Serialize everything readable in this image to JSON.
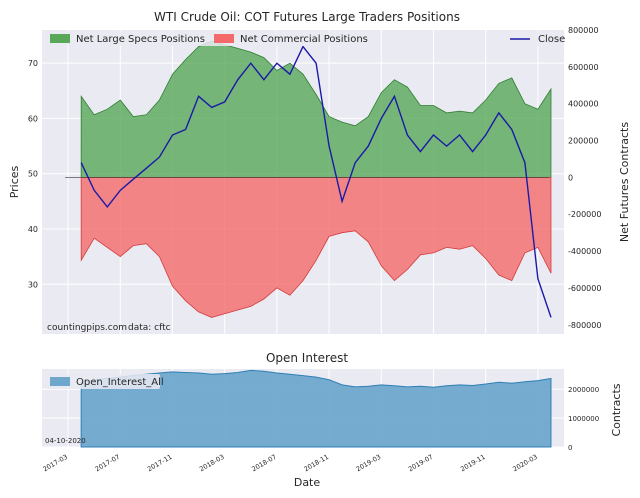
{
  "colors": {
    "specs_fill": "#58a858",
    "specs_edge": "#2e7d32",
    "comm_fill": "#f46a6a",
    "comm_edge": "#d23c3c",
    "close_line": "#1a1aa8",
    "oi_fill": "#6fa8cc",
    "oi_edge": "#2f7fb5",
    "plot_bg": "#eaeaf2",
    "grid": "#ffffff"
  },
  "chart_data": [
    {
      "type": "area",
      "title": "WTI Crude Oil: COT Futures Large Traders Positions",
      "ylabel_left": "Prices",
      "ylabel_right": "Net Futures Contracts",
      "ylim_left": [
        21,
        76
      ],
      "ylim_right": [
        -850000,
        800000
      ],
      "yticks_left": [
        "30",
        "40",
        "50",
        "60",
        "70"
      ],
      "yticks_right": [
        "-800000",
        "-600000",
        "-400000",
        "-200000",
        "0",
        "200000",
        "400000",
        "600000",
        "800000"
      ],
      "grid": true,
      "legend": [
        {
          "name": "Net Large Specs Positions",
          "placement": "top-left"
        },
        {
          "name": "Net Commercial Positions",
          "placement": "top-left"
        },
        {
          "name": "Close",
          "placement": "top-right"
        }
      ],
      "annotations": [
        "countingpips.com",
        "data: cftc"
      ],
      "series": [
        {
          "name": "Net Large Specs Positions",
          "axis": "right",
          "x": [
            "2017-04",
            "2017-05",
            "2017-06",
            "2017-07",
            "2017-08",
            "2017-09",
            "2017-10",
            "2017-11",
            "2017-12",
            "2018-01",
            "2018-02",
            "2018-03",
            "2018-04",
            "2018-05",
            "2018-06",
            "2018-07",
            "2018-08",
            "2018-09",
            "2018-10",
            "2018-11",
            "2018-12",
            "2019-01",
            "2019-02",
            "2019-03",
            "2019-04",
            "2019-05",
            "2019-06",
            "2019-07",
            "2019-08",
            "2019-09",
            "2019-10",
            "2019-11",
            "2019-12",
            "2020-01",
            "2020-02",
            "2020-03",
            "2020-04"
          ],
          "values": [
            440000,
            340000,
            370000,
            420000,
            330000,
            340000,
            420000,
            560000,
            640000,
            710000,
            740000,
            720000,
            700000,
            680000,
            650000,
            580000,
            620000,
            560000,
            450000,
            330000,
            300000,
            280000,
            330000,
            460000,
            530000,
            490000,
            390000,
            390000,
            350000,
            360000,
            350000,
            420000,
            510000,
            540000,
            400000,
            370000,
            480000
          ]
        },
        {
          "name": "Net Commercial Positions",
          "axis": "right",
          "x": [
            "2017-04",
            "2017-05",
            "2017-06",
            "2017-07",
            "2017-08",
            "2017-09",
            "2017-10",
            "2017-11",
            "2017-12",
            "2018-01",
            "2018-02",
            "2018-03",
            "2018-04",
            "2018-05",
            "2018-06",
            "2018-07",
            "2018-08",
            "2018-09",
            "2018-10",
            "2018-11",
            "2018-12",
            "2019-01",
            "2019-02",
            "2019-03",
            "2019-04",
            "2019-05",
            "2019-06",
            "2019-07",
            "2019-08",
            "2019-09",
            "2019-10",
            "2019-11",
            "2019-12",
            "2020-01",
            "2020-02",
            "2020-03",
            "2020-04"
          ],
          "values": [
            -450000,
            -330000,
            -380000,
            -430000,
            -370000,
            -360000,
            -430000,
            -590000,
            -670000,
            -730000,
            -760000,
            -740000,
            -720000,
            -700000,
            -660000,
            -600000,
            -640000,
            -560000,
            -450000,
            -320000,
            -300000,
            -290000,
            -350000,
            -480000,
            -560000,
            -500000,
            -420000,
            -410000,
            -380000,
            -390000,
            -370000,
            -440000,
            -530000,
            -560000,
            -410000,
            -380000,
            -520000
          ]
        },
        {
          "name": "Close",
          "axis": "left",
          "x": [
            "2017-04",
            "2017-05",
            "2017-06",
            "2017-07",
            "2017-08",
            "2017-09",
            "2017-10",
            "2017-11",
            "2017-12",
            "2018-01",
            "2018-02",
            "2018-03",
            "2018-04",
            "2018-05",
            "2018-06",
            "2018-07",
            "2018-08",
            "2018-09",
            "2018-10",
            "2018-11",
            "2018-12",
            "2019-01",
            "2019-02",
            "2019-03",
            "2019-04",
            "2019-05",
            "2019-06",
            "2019-07",
            "2019-08",
            "2019-09",
            "2019-10",
            "2019-11",
            "2019-12",
            "2020-01",
            "2020-02",
            "2020-03",
            "2020-04"
          ],
          "values": [
            52,
            47,
            44,
            47,
            49,
            51,
            53,
            57,
            58,
            64,
            62,
            63,
            67,
            70,
            67,
            70,
            68,
            73,
            70,
            55,
            45,
            52,
            55,
            60,
            64,
            57,
            54,
            57,
            55,
            57,
            54,
            57,
            61,
            58,
            52,
            31,
            24
          ]
        }
      ]
    },
    {
      "type": "area",
      "title": "Open Interest",
      "xlabel": "Date",
      "ylabel_right": "Contracts",
      "ylim": [
        0,
        2700000
      ],
      "yticks_right": [
        "0",
        "1000000",
        "2000000"
      ],
      "xticks": [
        "2017-03",
        "2017-07",
        "2017-11",
        "2018-03",
        "2018-07",
        "2018-11",
        "2019-03",
        "2019-07",
        "2019-11",
        "2020-03"
      ],
      "grid": true,
      "legend": [
        {
          "name": "Open_Interest_All",
          "placement": "top-left"
        }
      ],
      "annotations": [
        "04-10-2020"
      ],
      "series": [
        {
          "name": "Open_Interest_All",
          "x": [
            "2017-04",
            "2017-05",
            "2017-06",
            "2017-07",
            "2017-08",
            "2017-09",
            "2017-10",
            "2017-11",
            "2017-12",
            "2018-01",
            "2018-02",
            "2018-03",
            "2018-04",
            "2018-05",
            "2018-06",
            "2018-07",
            "2018-08",
            "2018-09",
            "2018-10",
            "2018-11",
            "2018-12",
            "2019-01",
            "2019-02",
            "2019-03",
            "2019-04",
            "2019-05",
            "2019-06",
            "2019-07",
            "2019-08",
            "2019-09",
            "2019-10",
            "2019-11",
            "2019-12",
            "2020-01",
            "2020-02",
            "2020-03",
            "2020-04"
          ],
          "values": [
            2250000,
            2320000,
            2380000,
            2420000,
            2480000,
            2520000,
            2560000,
            2600000,
            2580000,
            2560000,
            2520000,
            2540000,
            2580000,
            2650000,
            2620000,
            2560000,
            2520000,
            2470000,
            2420000,
            2330000,
            2150000,
            2080000,
            2100000,
            2150000,
            2120000,
            2080000,
            2100000,
            2070000,
            2120000,
            2150000,
            2130000,
            2180000,
            2240000,
            2210000,
            2260000,
            2300000,
            2370000
          ]
        }
      ]
    }
  ]
}
